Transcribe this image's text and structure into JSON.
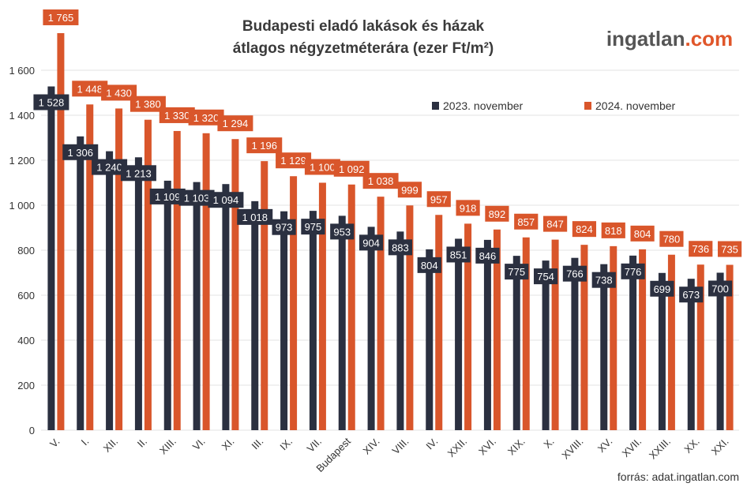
{
  "brand": {
    "text": "ingatlan",
    "dot": ".",
    "tld": "com"
  },
  "source": "forrás: adat.ingatlan.com",
  "colors": {
    "series_2023": "#2b3040",
    "series_2024": "#d9562b",
    "grid": "#e3e3e3",
    "brand_dark": "#555555",
    "brand_accent": "#e0562a"
  },
  "chart_data": {
    "type": "bar",
    "title": [
      "Budapesti eladó lakások és házak",
      "átlagos négyzetméterára (ezer Ft/m²)"
    ],
    "ylim": [
      0,
      1800
    ],
    "yticks": [
      0,
      200,
      400,
      600,
      800,
      "1 000",
      "1 200",
      "1 400",
      "1 600"
    ],
    "ytick_values": [
      0,
      200,
      400,
      600,
      800,
      1000,
      1200,
      1400,
      1600
    ],
    "grid": true,
    "legend_position": "top-right",
    "categories": [
      "V.",
      "I.",
      "XII.",
      "II.",
      "XIII.",
      "VI.",
      "XI.",
      "III.",
      "IX.",
      "VII.",
      "Budapest",
      "XIV.",
      "VIII.",
      "IV.",
      "XXII.",
      "XVI.",
      "XIX.",
      "X.",
      "XVIII.",
      "XV.",
      "XVII.",
      "XXIII.",
      "XX.",
      "XXI."
    ],
    "series": [
      {
        "name": "2023. november",
        "values": [
          1528,
          1306,
          1240,
          1213,
          1109,
          1103,
          1094,
          1018,
          973,
          975,
          953,
          904,
          883,
          804,
          851,
          846,
          775,
          754,
          766,
          738,
          776,
          699,
          673,
          700
        ],
        "labels": [
          "1 528",
          "1 306",
          "1 240",
          "1 213",
          "1 109",
          "1 103",
          "1 094",
          "1 018",
          "973",
          "975",
          "953",
          "904",
          "883",
          "804",
          "851",
          "846",
          "775",
          "754",
          "766",
          "738",
          "776",
          "699",
          "673",
          "700"
        ]
      },
      {
        "name": "2024. november",
        "values": [
          1765,
          1448,
          1430,
          1380,
          1330,
          1320,
          1294,
          1196,
          1129,
          1100,
          1092,
          1038,
          999,
          957,
          918,
          892,
          857,
          847,
          824,
          818,
          804,
          780,
          736,
          735
        ],
        "labels": [
          "1 765",
          "1 448",
          "1 430",
          "1 380",
          "1 330",
          "1 320",
          "1 294",
          "1 196",
          "1 129",
          "1 100",
          "1 092",
          "1 038",
          "999",
          "957",
          "918",
          "892",
          "857",
          "847",
          "824",
          "818",
          "804",
          "780",
          "736",
          "735"
        ]
      }
    ]
  }
}
